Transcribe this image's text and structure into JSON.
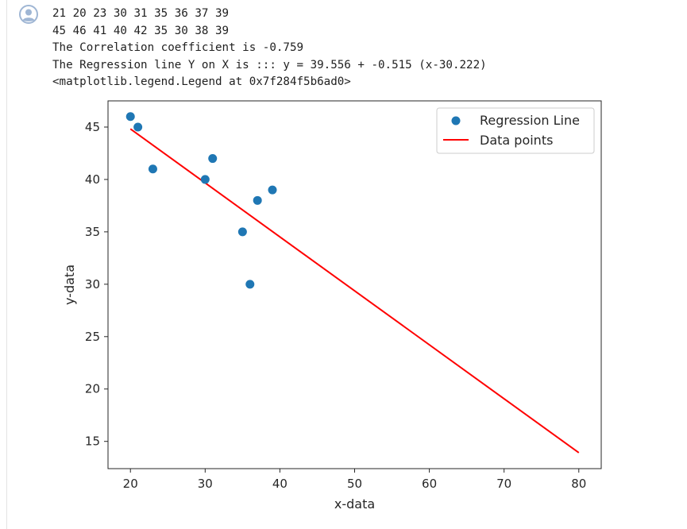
{
  "output": {
    "lines": [
      "21 20 23 30 31 35 36 37 39",
      "45 46 41 40 42 35 30 38 39",
      "The Correlation coefficient is -0.759",
      "The Regression line Y on X is ::: y = 39.556 + -0.515 (x-30.222)",
      "<matplotlib.legend.Legend at 0x7f284f5b6ad0>"
    ]
  },
  "icons": {
    "avatar": "user-avatar-icon"
  },
  "colors": {
    "points": "#1f77b4",
    "line": "#ff0000",
    "avatar": "#9fb6d4"
  },
  "chart_data": {
    "type": "scatter",
    "title": "",
    "xlabel": "x-data",
    "ylabel": "y-data",
    "xlim": [
      17,
      83
    ],
    "ylim": [
      12.4,
      47.5
    ],
    "xticks": [
      20,
      30,
      40,
      50,
      60,
      70,
      80
    ],
    "yticks": [
      15,
      20,
      25,
      30,
      35,
      40,
      45
    ],
    "grid": false,
    "legend_position": "top-right",
    "series": [
      {
        "name": "Regression Line",
        "kind": "scatter",
        "x": [
          21,
          20,
          23,
          30,
          31,
          35,
          36,
          37,
          39
        ],
        "y": [
          45,
          46,
          41,
          40,
          42,
          35,
          30,
          38,
          39
        ]
      },
      {
        "name": "Data points",
        "kind": "line",
        "x": [
          20,
          80
        ],
        "y": [
          44.82,
          13.92
        ]
      }
    ]
  }
}
